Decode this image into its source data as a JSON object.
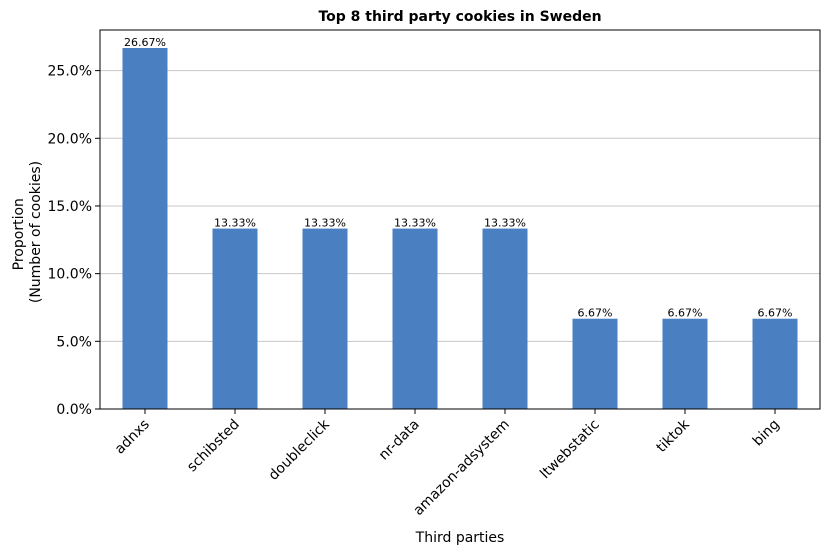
{
  "chart_data": {
    "type": "bar",
    "title": "Top 8 third party cookies in Sweden",
    "xlabel": "Third parties",
    "ylabel_lines": [
      "Proportion",
      "(Number of cookies)"
    ],
    "categories": [
      "adnxs",
      "schibsted",
      "doubleclick",
      "nr-data",
      "amazon-adsystem",
      "ltwebstatic",
      "tiktok",
      "bing"
    ],
    "values": [
      26.67,
      13.33,
      13.33,
      13.33,
      13.33,
      6.67,
      6.67,
      6.67
    ],
    "value_labels": [
      "26.67%",
      "13.33%",
      "13.33%",
      "13.33%",
      "13.33%",
      "6.67%",
      "6.67%",
      "6.67%"
    ],
    "yticks": [
      0,
      5,
      10,
      15,
      20,
      25
    ],
    "ytick_labels": [
      "0.0%",
      "5.0%",
      "10.0%",
      "15.0%",
      "20.0%",
      "25.0%"
    ],
    "ylim": [
      0,
      28.0
    ],
    "grid": "horizontal",
    "bar_color": "#4a7fc1"
  }
}
